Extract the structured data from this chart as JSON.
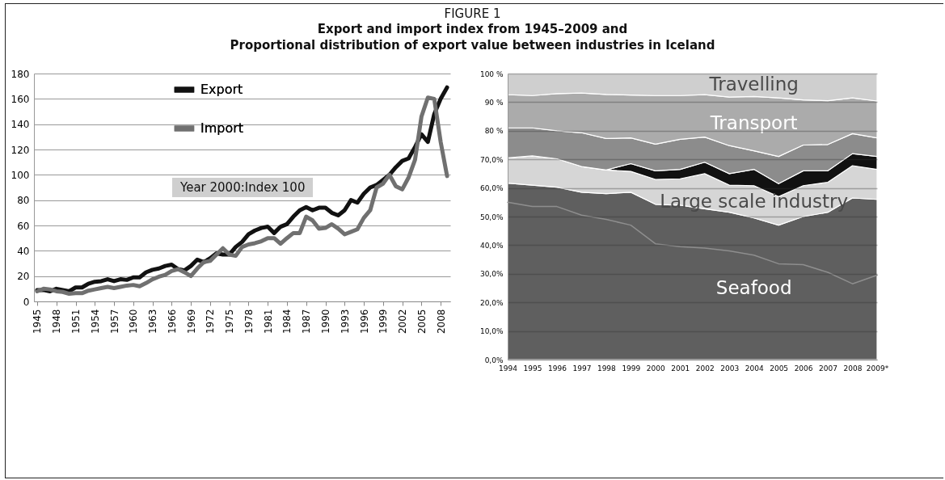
{
  "chart_data": [
    {
      "type": "line",
      "title": "FIGURE 1",
      "subtitle": "Export and import index from 1945–2009 and\nProportional distribution of export value between industries in Iceland",
      "x": [
        1945,
        1946,
        1947,
        1948,
        1949,
        1950,
        1951,
        1952,
        1953,
        1954,
        1955,
        1956,
        1957,
        1958,
        1959,
        1960,
        1961,
        1962,
        1963,
        1964,
        1965,
        1966,
        1967,
        1968,
        1969,
        1970,
        1971,
        1972,
        1973,
        1974,
        1975,
        1976,
        1977,
        1978,
        1979,
        1980,
        1981,
        1982,
        1983,
        1984,
        1985,
        1986,
        1987,
        1988,
        1989,
        1990,
        1991,
        1992,
        1993,
        1994,
        1995,
        1996,
        1997,
        1998,
        1999,
        2000,
        2001,
        2002,
        2003,
        2004,
        2005,
        2006,
        2007,
        2008,
        2009
      ],
      "series": [
        {
          "name": "Export",
          "color": "#111111",
          "values": [
            9,
            9,
            8,
            10,
            9,
            8,
            11,
            11,
            14,
            15.5,
            16,
            17.5,
            16,
            17.5,
            17,
            19,
            19,
            23,
            25,
            26,
            28,
            29,
            25.5,
            24.5,
            28,
            33,
            31,
            34,
            38,
            37,
            37,
            43,
            47,
            53,
            56,
            58,
            59,
            54,
            59,
            61,
            67,
            72,
            74.5,
            72,
            74,
            74,
            70,
            68,
            72,
            80,
            78,
            85,
            90,
            92,
            96,
            100,
            106,
            111,
            113,
            122,
            132,
            126,
            148,
            160,
            169
          ]
        },
        {
          "name": "Import",
          "color": "#707070",
          "values": [
            8,
            10,
            9.5,
            8,
            7.5,
            6,
            6.5,
            6.5,
            8.5,
            9.5,
            10.5,
            11.5,
            10.5,
            11.5,
            12.5,
            13,
            12,
            14.5,
            17.5,
            19.5,
            21,
            24,
            25.5,
            23,
            20,
            26,
            31,
            32,
            37,
            42,
            37,
            36,
            43,
            45,
            46,
            47.5,
            50,
            50,
            45.5,
            50,
            54,
            54,
            67,
            64,
            57.5,
            58,
            61,
            57.5,
            53,
            55,
            57,
            66,
            72,
            90,
            93,
            100,
            91,
            88.5,
            98,
            112,
            146,
            161,
            160,
            126,
            99
          ]
        }
      ],
      "xlim": [
        1944.5,
        2009.5
      ],
      "xticks": [
        1945,
        1948,
        1951,
        1954,
        1957,
        1960,
        1963,
        1966,
        1969,
        1972,
        1975,
        1978,
        1981,
        1984,
        1987,
        1990,
        1993,
        1996,
        1999,
        2002,
        2005,
        2008
      ],
      "ylim": [
        0,
        180
      ],
      "yticks": [
        0,
        20,
        40,
        60,
        80,
        100,
        120,
        140,
        160,
        180
      ],
      "grid": "y",
      "legend": "top",
      "line_style": "solid",
      "annotations": [
        "Year 2000:Index 100"
      ]
    },
    {
      "type": "area",
      "stacked": true,
      "categories": [
        "1994",
        "1995",
        "1996",
        "1997",
        "1998",
        "1999",
        "2000",
        "2001",
        "2002",
        "2003",
        "2004",
        "2005",
        "2006",
        "2007",
        "2008",
        "2009*"
      ],
      "series": [
        {
          "name": "Seafood",
          "color": "#5f5f5f",
          "values": [
            61.7,
            61,
            60.3,
            58.5,
            58,
            58.5,
            54.3,
            54,
            52.7,
            51.5,
            49.5,
            47,
            50,
            51.5,
            56.5,
            56
          ]
        },
        {
          "name": "Large scale industry",
          "color": "#d6d6d6",
          "values": [
            8.8,
            10.2,
            9.9,
            9,
            8.3,
            7.3,
            8.7,
            9.2,
            12.3,
            9.5,
            11.3,
            10,
            10.8,
            10.5,
            11.3,
            10.5
          ]
        },
        {
          "color": "#111111",
          "values": [
            0,
            0,
            0,
            0,
            0,
            2.7,
            3,
            3.3,
            4,
            4,
            5.7,
            4.5,
            5.2,
            4,
            4.2,
            4.5
          ]
        },
        {
          "color": "#8c8c8c",
          "values": [
            10.5,
            9.8,
            9.8,
            11.8,
            11,
            9,
            9.3,
            10.5,
            8.8,
            9.8,
            6.5,
            9.5,
            9,
            9.2,
            7,
            6.5
          ]
        },
        {
          "name": "Transport",
          "color": "#ababab",
          "values": [
            11.6,
            11.3,
            13,
            13.9,
            15.4,
            15,
            17,
            15.3,
            14.8,
            17,
            19,
            20.5,
            15.8,
            15.3,
            12.5,
            12.9
          ]
        },
        {
          "name": "Travelling",
          "color": "#cfcfcf",
          "values": [
            7.4,
            7.7,
            7,
            6.8,
            7.3,
            7.5,
            7.7,
            7.7,
            7.4,
            8.2,
            8,
            8.5,
            9.2,
            9.5,
            8.5,
            9.6
          ]
        },
        {
          "type": "line",
          "color": "#8e8e8e",
          "values": [
            55,
            53.5,
            53.5,
            50.5,
            49,
            47,
            40.5,
            39.5,
            39,
            38,
            36.5,
            33.5,
            33.2,
            30.5,
            26.5,
            29.5
          ]
        }
      ],
      "ylim": [
        0,
        100
      ],
      "yticks": [
        {
          "value": 0,
          "label": "0,0%"
        },
        {
          "value": 10,
          "label": "10,0%"
        },
        {
          "value": 20,
          "label": "20,0%"
        },
        {
          "value": 30,
          "label": "30,0%"
        },
        {
          "value": 40,
          "label": "40,0%"
        },
        {
          "value": 50,
          "label": "50,0%"
        },
        {
          "value": 60,
          "label": "60,0%"
        },
        {
          "value": 70,
          "label": "70,0%"
        },
        {
          "value": 80,
          "label": "80  %"
        },
        {
          "value": 90,
          "label": "90  %"
        },
        {
          "value": 100,
          "label": "100  %"
        }
      ],
      "grid": "y",
      "legend": false
    }
  ]
}
